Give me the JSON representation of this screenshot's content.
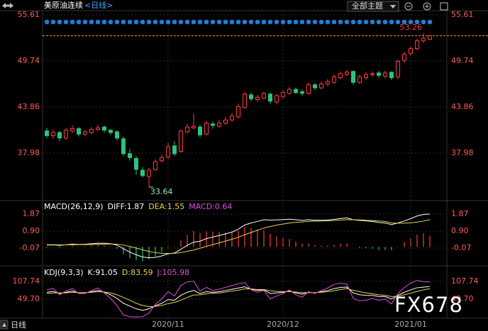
{
  "ui": {
    "theme_button": "全部主题",
    "period": "日线",
    "watermark": "FX678"
  },
  "chart_data": [
    {
      "type": "candlestick",
      "title": "美原油连续",
      "subtitle": "<日线>",
      "categories": [
        null,
        null,
        null,
        null,
        null,
        null,
        null,
        null,
        null,
        null,
        null,
        null,
        null,
        null,
        null,
        null,
        null,
        null,
        null,
        "2020/11",
        null,
        null,
        null,
        null,
        null,
        null,
        null,
        null,
        null,
        null,
        null,
        null,
        null,
        null,
        null,
        null,
        null,
        "2020/12",
        null,
        null,
        null,
        null,
        null,
        null,
        null,
        null,
        null,
        null,
        null,
        null,
        null,
        null,
        null,
        null,
        null,
        null,
        null,
        "2021/01",
        null,
        null,
        null
      ],
      "open": [
        40.8,
        40.2,
        40.6,
        39.9,
        40.8,
        41.1,
        40.4,
        40.6,
        41.0,
        41.3,
        40.9,
        40.7,
        39.8,
        37.9,
        37.3,
        35.8,
        35.0,
        35.9,
        37.0,
        37.5,
        38.9,
        38.2,
        40.7,
        41.2,
        41.3,
        40.4,
        41.7,
        41.4,
        41.8,
        42.2,
        42.6,
        43.8,
        45.4,
        44.8,
        45.0,
        45.5,
        44.5,
        45.2,
        45.6,
        46.1,
        45.8,
        45.6,
        46.7,
        46.3,
        46.8,
        47.0,
        47.6,
        48.0,
        48.4,
        47.0,
        47.6,
        48.0,
        48.2,
        47.8,
        48.3,
        47.7,
        49.8,
        50.7,
        51.3,
        52.3,
        52.5
      ],
      "high": [
        41.2,
        41.0,
        40.8,
        41.2,
        41.5,
        41.3,
        41.0,
        41.3,
        41.6,
        41.5,
        41.1,
        40.9,
        40.1,
        38.5,
        37.6,
        36.2,
        36.1,
        37.2,
        37.8,
        39.3,
        39.5,
        41.0,
        41.7,
        43.0,
        41.6,
        42.1,
        42.0,
        42.2,
        42.6,
        43.1,
        44.3,
        45.8,
        45.7,
        45.4,
        45.8,
        45.7,
        45.5,
        46.0,
        46.4,
        46.3,
        46.1,
        47.0,
        46.9,
        47.1,
        47.4,
        48.0,
        48.4,
        48.6,
        48.5,
        48.0,
        48.3,
        48.4,
        48.5,
        48.5,
        48.4,
        49.9,
        50.9,
        51.6,
        52.6,
        53.26,
        53.1
      ],
      "low": [
        39.9,
        39.8,
        39.5,
        39.7,
        40.5,
        40.1,
        40.1,
        40.4,
        40.8,
        40.6,
        40.3,
        39.6,
        37.6,
        37.0,
        35.2,
        34.9,
        33.64,
        35.7,
        36.8,
        37.2,
        37.6,
        38.0,
        40.5,
        41.0,
        40.0,
        40.2,
        41.1,
        41.2,
        41.6,
        42.0,
        42.4,
        43.6,
        44.6,
        44.5,
        44.8,
        44.3,
        44.2,
        44.9,
        45.4,
        45.5,
        45.3,
        45.4,
        46.0,
        46.1,
        46.5,
        46.8,
        47.4,
        47.8,
        46.7,
        46.8,
        47.3,
        47.7,
        47.6,
        47.5,
        47.3,
        47.4,
        49.5,
        50.4,
        51.1,
        52.0,
        52.4
      ],
      "close": [
        40.2,
        40.6,
        39.9,
        40.9,
        41.1,
        40.4,
        40.7,
        41.0,
        41.2,
        40.9,
        40.6,
        39.9,
        37.9,
        37.4,
        35.9,
        35.1,
        35.8,
        36.9,
        37.4,
        38.8,
        37.9,
        40.8,
        41.3,
        41.4,
        40.3,
        41.8,
        41.5,
        41.8,
        42.2,
        42.7,
        43.9,
        45.5,
        44.9,
        45.1,
        45.6,
        44.6,
        45.3,
        45.7,
        46.1,
        45.7,
        45.6,
        46.7,
        46.3,
        46.8,
        47.1,
        47.7,
        48.1,
        48.3,
        47.0,
        47.7,
        48.0,
        48.1,
        47.9,
        48.2,
        47.6,
        49.7,
        50.6,
        51.3,
        52.3,
        52.6,
        52.95
      ],
      "up_color": "#ff3b3b",
      "down_color": "#2ec27e",
      "last_line_color": "#ff9a2e",
      "marker_color": "#1e7fd6",
      "ylim": [
        32.01,
        56.15
      ],
      "yticks": [
        55.61,
        49.74,
        43.86,
        37.98
      ],
      "max_label": 53.26,
      "min_label": 33.64
    },
    {
      "type": "macd",
      "title": "MACD(26,12,9)",
      "series": [
        {
          "name": "DIFF:1.87",
          "color": "#ffffff",
          "values": [
            0.1,
            0.11,
            0.08,
            0.12,
            0.16,
            0.14,
            0.15,
            0.18,
            0.21,
            0.21,
            0.18,
            0.1,
            -0.11,
            -0.3,
            -0.45,
            -0.58,
            -0.62,
            -0.6,
            -0.52,
            -0.4,
            -0.35,
            -0.14,
            0.09,
            0.27,
            0.32,
            0.47,
            0.56,
            0.65,
            0.74,
            0.84,
            1.01,
            1.25,
            1.36,
            1.45,
            1.55,
            1.53,
            1.54,
            1.56,
            1.58,
            1.55,
            1.51,
            1.55,
            1.52,
            1.52,
            1.53,
            1.57,
            1.62,
            1.65,
            1.55,
            1.51,
            1.48,
            1.45,
            1.39,
            1.36,
            1.27,
            1.36,
            1.48,
            1.61,
            1.76,
            1.85,
            1.87
          ]
        },
        {
          "name": "DEA:1.55",
          "color": "#e8d44d",
          "values": [
            0.12,
            0.12,
            0.11,
            0.11,
            0.12,
            0.13,
            0.13,
            0.14,
            0.15,
            0.16,
            0.17,
            0.15,
            0.1,
            0.02,
            -0.07,
            -0.17,
            -0.26,
            -0.33,
            -0.37,
            -0.38,
            -0.37,
            -0.33,
            -0.25,
            -0.18,
            -0.08,
            0.03,
            0.13,
            0.23,
            0.33,
            0.43,
            0.55,
            0.69,
            0.82,
            0.95,
            1.07,
            1.16,
            1.24,
            1.3,
            1.36,
            1.4,
            1.42,
            1.45,
            1.47,
            1.48,
            1.49,
            1.51,
            1.53,
            1.55,
            1.55,
            1.54,
            1.52,
            1.5,
            1.48,
            1.45,
            1.36,
            1.35,
            1.35,
            1.37,
            1.41,
            1.47,
            1.55
          ]
        },
        {
          "name": "MACD:0.64",
          "color": "#e14ce0",
          "style": "bar",
          "up_color": "#ff3b3b",
          "down_color": "#2ec27e",
          "values": [
            -0.04,
            -0.02,
            -0.06,
            0.02,
            0.08,
            0.02,
            0.04,
            0.08,
            0.12,
            0.1,
            0.02,
            -0.1,
            -0.42,
            -0.64,
            -0.76,
            -0.82,
            -0.72,
            -0.54,
            -0.3,
            -0.04,
            0.04,
            0.38,
            0.68,
            0.9,
            0.8,
            0.88,
            0.86,
            0.84,
            0.82,
            0.82,
            0.92,
            1.12,
            1.08,
            1.0,
            0.96,
            0.74,
            0.6,
            0.52,
            0.44,
            0.3,
            0.18,
            0.2,
            0.1,
            0.08,
            0.08,
            0.12,
            0.18,
            0.2,
            0.0,
            -0.06,
            -0.08,
            -0.1,
            -0.18,
            -0.18,
            -0.18,
            0.02,
            0.26,
            0.48,
            0.7,
            0.76,
            0.64
          ]
        }
      ],
      "ylim": [
        -1.0,
        2.6
      ],
      "yticks": [
        1.87,
        {
          "value": 0.9,
          "label": "0.90"
        },
        -0.07
      ]
    },
    {
      "type": "line",
      "title": "KDJ(9,3,3)",
      "series": [
        {
          "name": "K:91.05",
          "color": "#ffffff",
          "values": [
            72,
            75,
            68,
            72,
            76,
            70,
            70,
            74,
            78,
            72,
            64,
            52,
            36,
            27,
            18,
            13,
            18,
            28,
            36,
            48,
            46,
            62,
            72,
            78,
            68,
            74,
            72,
            74,
            78,
            82,
            86,
            90,
            82,
            78,
            80,
            68,
            70,
            72,
            76,
            70,
            66,
            72,
            70,
            74,
            78,
            84,
            88,
            89,
            70,
            64,
            62,
            62,
            58,
            58,
            50,
            62,
            72,
            80,
            87,
            89,
            91.05
          ]
        },
        {
          "name": "D:83.59",
          "color": "#e8d44d",
          "values": [
            68,
            70,
            70,
            70,
            72,
            71,
            71,
            72,
            74,
            73,
            70,
            64,
            55,
            46,
            36,
            29,
            25,
            26,
            29,
            35,
            39,
            46,
            55,
            63,
            64,
            67,
            69,
            70,
            73,
            76,
            79,
            83,
            83,
            81,
            81,
            77,
            75,
            74,
            74,
            73,
            71,
            71,
            71,
            72,
            74,
            77,
            81,
            84,
            79,
            74,
            70,
            67,
            64,
            62,
            58,
            59,
            64,
            69,
            75,
            80,
            83.59
          ]
        },
        {
          "name": "J:105.98",
          "color": "#e14ce0",
          "values": [
            80,
            85,
            64,
            76,
            84,
            68,
            68,
            78,
            86,
            70,
            52,
            28,
            -2,
            -8,
            -9,
            -8,
            4,
            32,
            50,
            74,
            60,
            94,
            106,
            108,
            76,
            88,
            78,
            82,
            88,
            94,
            100,
            104,
            80,
            72,
            78,
            50,
            60,
            68,
            80,
            64,
            56,
            74,
            68,
            78,
            86,
            98,
            102,
            99,
            52,
            44,
            46,
            52,
            46,
            50,
            34,
            68,
            88,
            102,
            111,
            107,
            105.98
          ]
        }
      ],
      "ylim": [
        -13,
        151.85
      ],
      "yticks": [
        107.74,
        {
          "value": 49.7,
          "label": "49.70"
        }
      ]
    }
  ]
}
